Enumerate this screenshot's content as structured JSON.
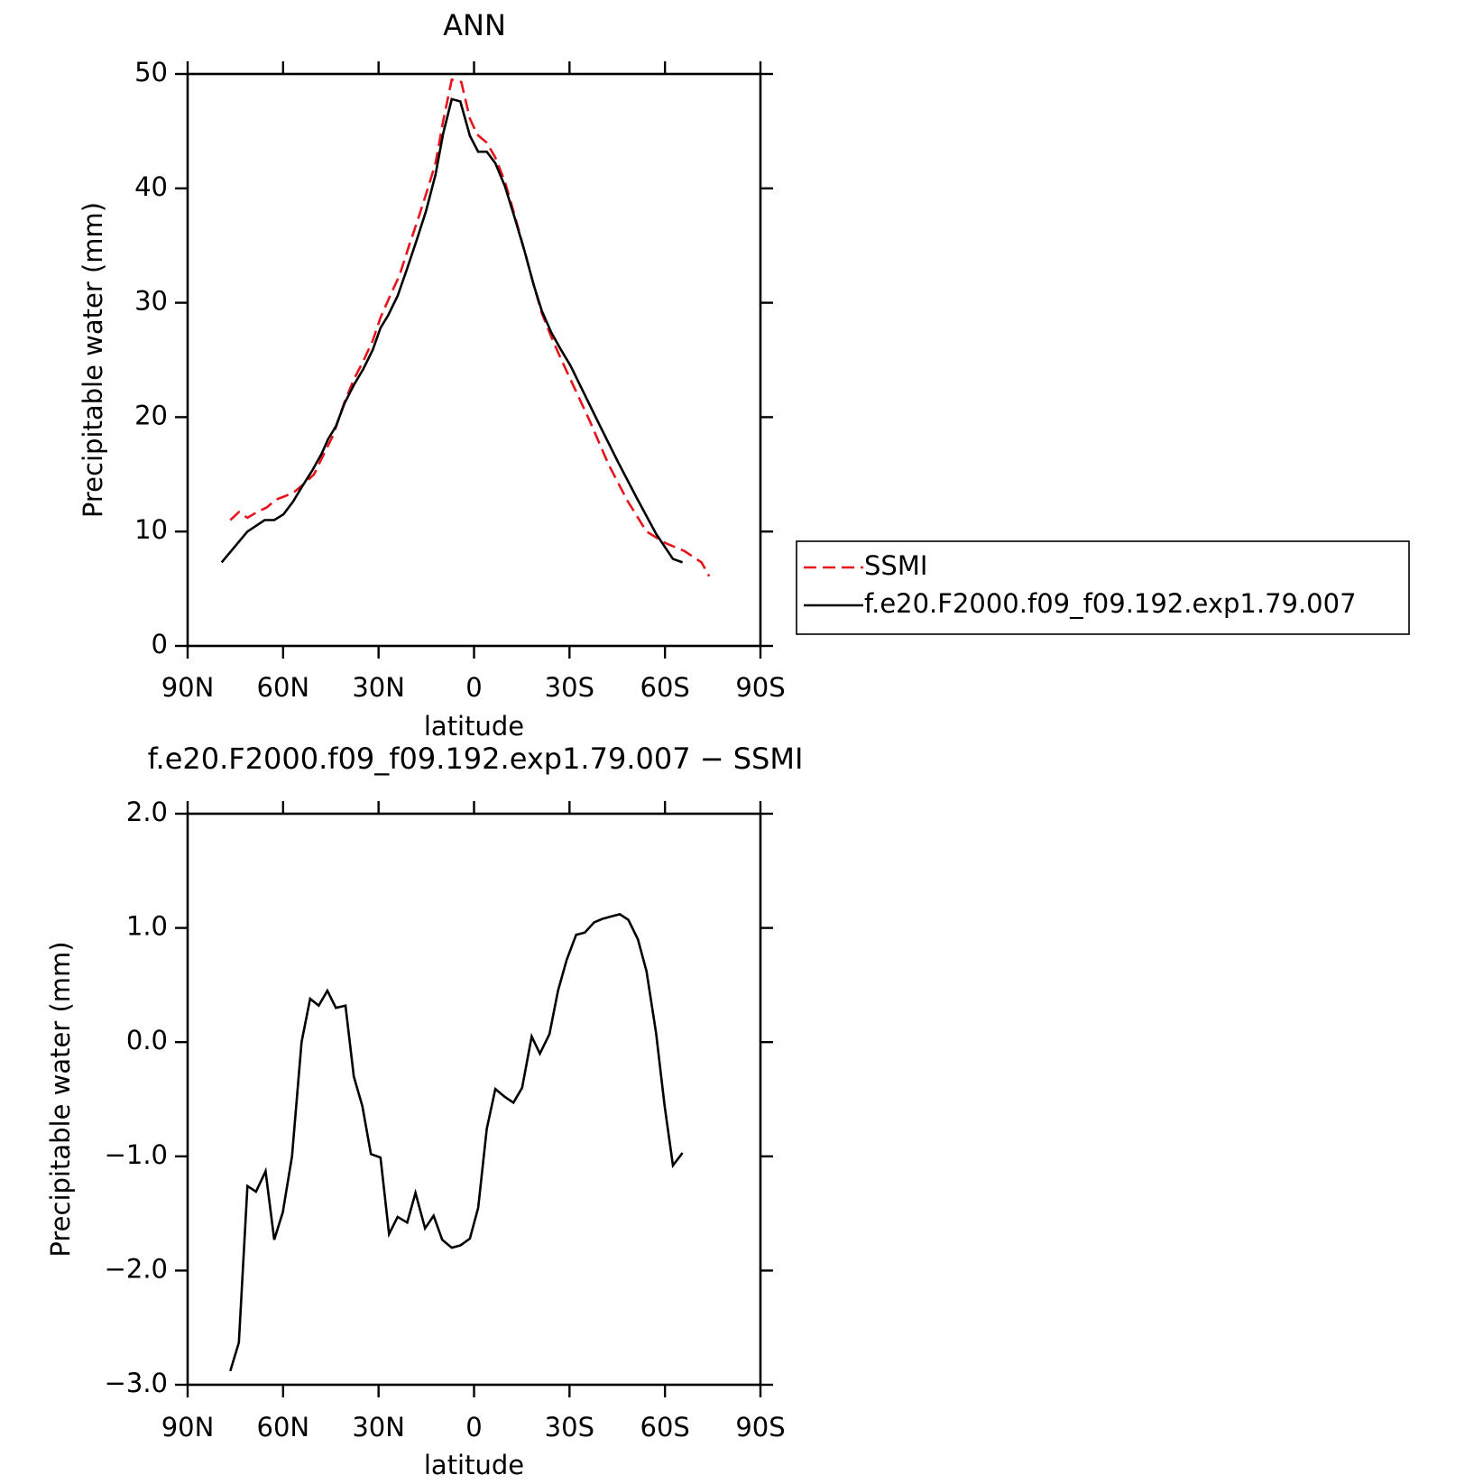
{
  "chart_data": [
    {
      "type": "line",
      "title": "ANN",
      "x_label": "latitude",
      "y_label": "Precipitable water (mm)",
      "xlim": [
        90,
        -90
      ],
      "xticks": [
        {
          "value": 90,
          "label": "90N"
        },
        {
          "value": 60,
          "label": "60N"
        },
        {
          "value": 30,
          "label": "30N"
        },
        0,
        {
          "value": -30,
          "label": "30S"
        },
        {
          "value": -60,
          "label": "60S"
        },
        {
          "value": -90,
          "label": "90S"
        }
      ],
      "ylim": [
        0,
        50
      ],
      "yticks": [
        0,
        10,
        20,
        30,
        40,
        50
      ],
      "legend": "right",
      "series": [
        {
          "name": "SSMI",
          "color": "#e8141b",
          "dash": "dashed",
          "x": [
            76.6,
            73.9,
            71.2,
            68.2,
            65.2,
            62.2,
            59.3,
            56.3,
            53.3,
            50.3,
            47.3,
            44.3,
            40.7,
            37.8,
            34.8,
            31.8,
            29.4,
            26.4,
            23.4,
            20.4,
            17.5,
            14.5,
            12.1,
            9.7,
            7.0,
            4.0,
            1.3,
            -1.0,
            -4.0,
            -6.7,
            -9.7,
            -12.7,
            -16.0,
            -18.7,
            -21.3,
            -24.3,
            -27.3,
            -30.3,
            -36.3,
            -42.2,
            -48.2,
            -54.2,
            -60.1,
            -66.1,
            -71.5,
            -73.9
          ],
          "values": [
            11.0,
            11.7,
            11.2,
            11.7,
            12.1,
            12.8,
            13.1,
            13.5,
            14.2,
            15.0,
            16.7,
            18.4,
            21.3,
            23.3,
            24.9,
            26.7,
            28.7,
            30.6,
            32.4,
            35.0,
            37.4,
            40.0,
            42.2,
            45.9,
            49.5,
            49.3,
            46.1,
            44.7,
            44.0,
            42.7,
            40.6,
            37.7,
            34.4,
            31.6,
            29.1,
            27.0,
            25.1,
            23.3,
            19.7,
            15.9,
            12.7,
            10.0,
            9.0,
            8.3,
            7.3,
            6.1
          ]
        },
        {
          "name": "f.e20.F2000.f09_f09.192.exp1.79.007",
          "color": "#000000",
          "dash": "solid",
          "x": [
            79.3,
            71.2,
            65.8,
            62.8,
            59.9,
            56.9,
            53.9,
            50.9,
            47.9,
            45.8,
            43.4,
            40.7,
            37.8,
            34.8,
            31.8,
            29.4,
            27.0,
            24.0,
            21.0,
            18.1,
            15.1,
            12.1,
            9.7,
            7.0,
            4.3,
            1.3,
            -1.3,
            -4.0,
            -6.7,
            -9.7,
            -12.7,
            -16.0,
            -18.7,
            -21.3,
            -24.3,
            -27.3,
            -30.3,
            -33.3,
            -39.3,
            -45.2,
            -51.2,
            -57.2,
            -62.5,
            -65.5
          ],
          "values": [
            7.3,
            10.0,
            11.0,
            11.0,
            11.5,
            12.6,
            14.0,
            15.3,
            16.8,
            18.1,
            19.2,
            21.2,
            22.8,
            24.2,
            25.9,
            27.8,
            28.9,
            30.6,
            33.0,
            35.4,
            38.0,
            41.2,
            44.8,
            47.8,
            47.6,
            44.6,
            43.2,
            43.2,
            42.2,
            40.2,
            37.5,
            34.4,
            31.6,
            29.3,
            27.4,
            25.9,
            24.5,
            22.8,
            19.4,
            16.1,
            12.9,
            9.8,
            7.6,
            7.3
          ]
        }
      ]
    },
    {
      "type": "line",
      "title": "f.e20.F2000.f09_f09.192.exp1.79.007 − SSMI",
      "x_label": "latitude",
      "y_label": "Precipitable water (mm)",
      "xlim": [
        90,
        -90
      ],
      "xticks": [
        {
          "value": 90,
          "label": "90N"
        },
        {
          "value": 60,
          "label": "60N"
        },
        {
          "value": 30,
          "label": "30N"
        },
        0,
        {
          "value": -30,
          "label": "30S"
        },
        {
          "value": -60,
          "label": "60S"
        },
        {
          "value": -90,
          "label": "90S"
        }
      ],
      "ylim": [
        -3,
        2
      ],
      "yticks": [
        {
          "value": -3,
          "label": "−3.0"
        },
        {
          "value": -2,
          "label": "−2.0"
        },
        {
          "value": -1,
          "label": "−1.0"
        },
        {
          "value": 0,
          "label": "0.0"
        },
        {
          "value": 1,
          "label": "1.0"
        },
        {
          "value": 2,
          "label": "2.0"
        }
      ],
      "series": [
        {
          "color": "#000000",
          "dash": "solid",
          "x": [
            76.6,
            73.9,
            71.2,
            68.5,
            65.5,
            62.8,
            60.1,
            57.2,
            54.2,
            51.5,
            48.8,
            46.1,
            43.4,
            40.4,
            37.8,
            35.1,
            32.4,
            29.4,
            26.7,
            24.0,
            21.0,
            18.4,
            15.4,
            12.7,
            10.0,
            7.0,
            4.3,
            1.3,
            -1.3,
            -4.0,
            -6.7,
            -9.7,
            -12.4,
            -15.1,
            -18.1,
            -20.7,
            -23.7,
            -26.4,
            -29.1,
            -32.1,
            -34.8,
            -37.8,
            -40.4,
            -43.1,
            -45.8,
            -48.5,
            -51.5,
            -54.2,
            -57.2,
            -59.9,
            -62.5,
            -65.5
          ],
          "values": [
            -2.88,
            -2.63,
            -1.26,
            -1.31,
            -1.13,
            -1.73,
            -1.49,
            -1.0,
            0.0,
            0.38,
            0.32,
            0.45,
            0.3,
            0.32,
            -0.3,
            -0.56,
            -0.98,
            -1.01,
            -1.68,
            -1.53,
            -1.58,
            -1.32,
            -1.63,
            -1.52,
            -1.73,
            -1.8,
            -1.78,
            -1.72,
            -1.45,
            -0.76,
            -0.41,
            -0.48,
            -0.53,
            -0.4,
            0.05,
            -0.1,
            0.07,
            0.45,
            0.72,
            0.94,
            0.96,
            1.05,
            1.08,
            1.1,
            1.12,
            1.07,
            0.9,
            0.62,
            0.08,
            -0.56,
            -1.08,
            -0.97
          ]
        }
      ]
    }
  ]
}
